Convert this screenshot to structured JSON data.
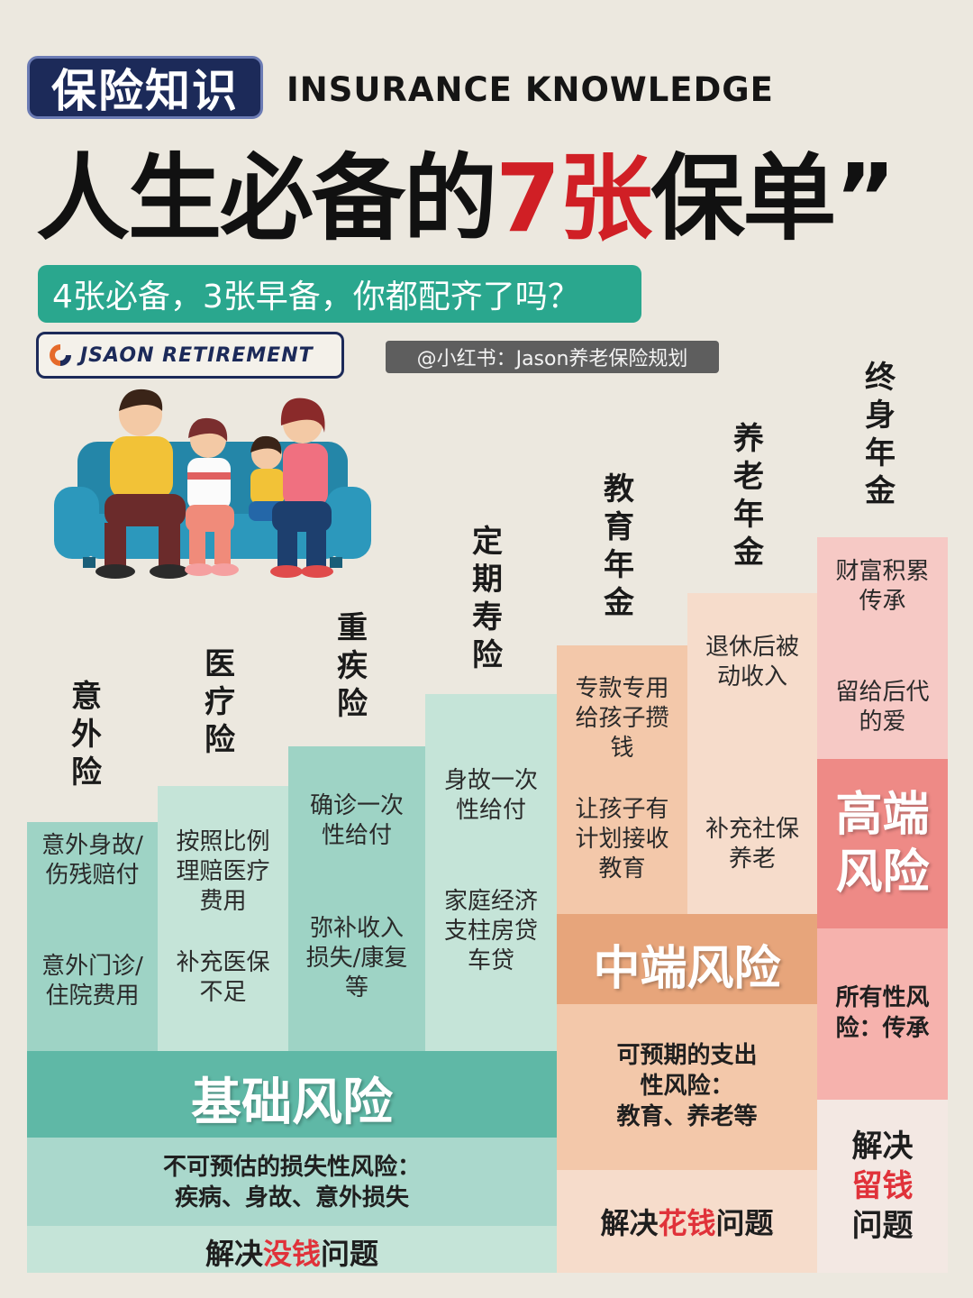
{
  "header": {
    "tag": "保险知识",
    "en_title": "INSURANCE KNOWLEDGE",
    "title_prefix": "人生必备的",
    "title_highlight": "7张",
    "title_suffix": "保单",
    "title_quote": "”",
    "subtitle": "4张必备，3张早备，你都配齐了吗？",
    "brand": "JSAON RETIREMENT",
    "handle": "@小红书：Jason养老保险规划"
  },
  "columns": [
    {
      "label": "意外险",
      "texts": [
        "意外身故/伤残赔付",
        "意外门诊/住院费用"
      ]
    },
    {
      "label": "医疗险",
      "texts": [
        "按照比例理赔医疗费用",
        "补充医保不足"
      ]
    },
    {
      "label": "重疾险",
      "texts": [
        "确诊一次性给付",
        "弥补收入损失/康复等"
      ]
    },
    {
      "label": "定期寿险",
      "texts": [
        "身故一次性给付",
        "家庭经济支柱房贷车贷"
      ]
    },
    {
      "label": "教育年金",
      "texts": [
        "专款专用给孩子攒钱",
        "让孩子有计划接收教育"
      ]
    },
    {
      "label": "养老年金",
      "texts": [
        "退休后被动收入",
        "补充社保养老"
      ]
    },
    {
      "label": "终身年金",
      "texts": [
        "财富积累传承",
        "留给后代的爱"
      ]
    }
  ],
  "tiers": {
    "basic": {
      "label": "基础风险",
      "desc_line1": "不可预估的损失性风险：",
      "desc_line2": "疾病、身故、意外损失",
      "sol_prefix": "解决",
      "sol_highlight": "没钱",
      "sol_suffix": "问题"
    },
    "mid": {
      "label": "中端风险",
      "desc_line1": "可预期的支出",
      "desc_line2": "性风险：",
      "desc_line3": "教育、养老等",
      "sol_prefix": "解决",
      "sol_highlight": "花钱",
      "sol_suffix": "问题"
    },
    "high": {
      "label_line1": "高端",
      "label_line2": "风险",
      "desc": "所有性风险：传承",
      "sol_prefix": "解决",
      "sol_highlight": "留钱",
      "sol_suffix": "问题"
    }
  },
  "colors": {
    "navy": "#1c2a59",
    "teal": "#2aa78e",
    "red": "#d01f25",
    "basic_band": "#5fb8a6",
    "mid_band": "#e7a57b",
    "high_band": "#ee8a86"
  }
}
